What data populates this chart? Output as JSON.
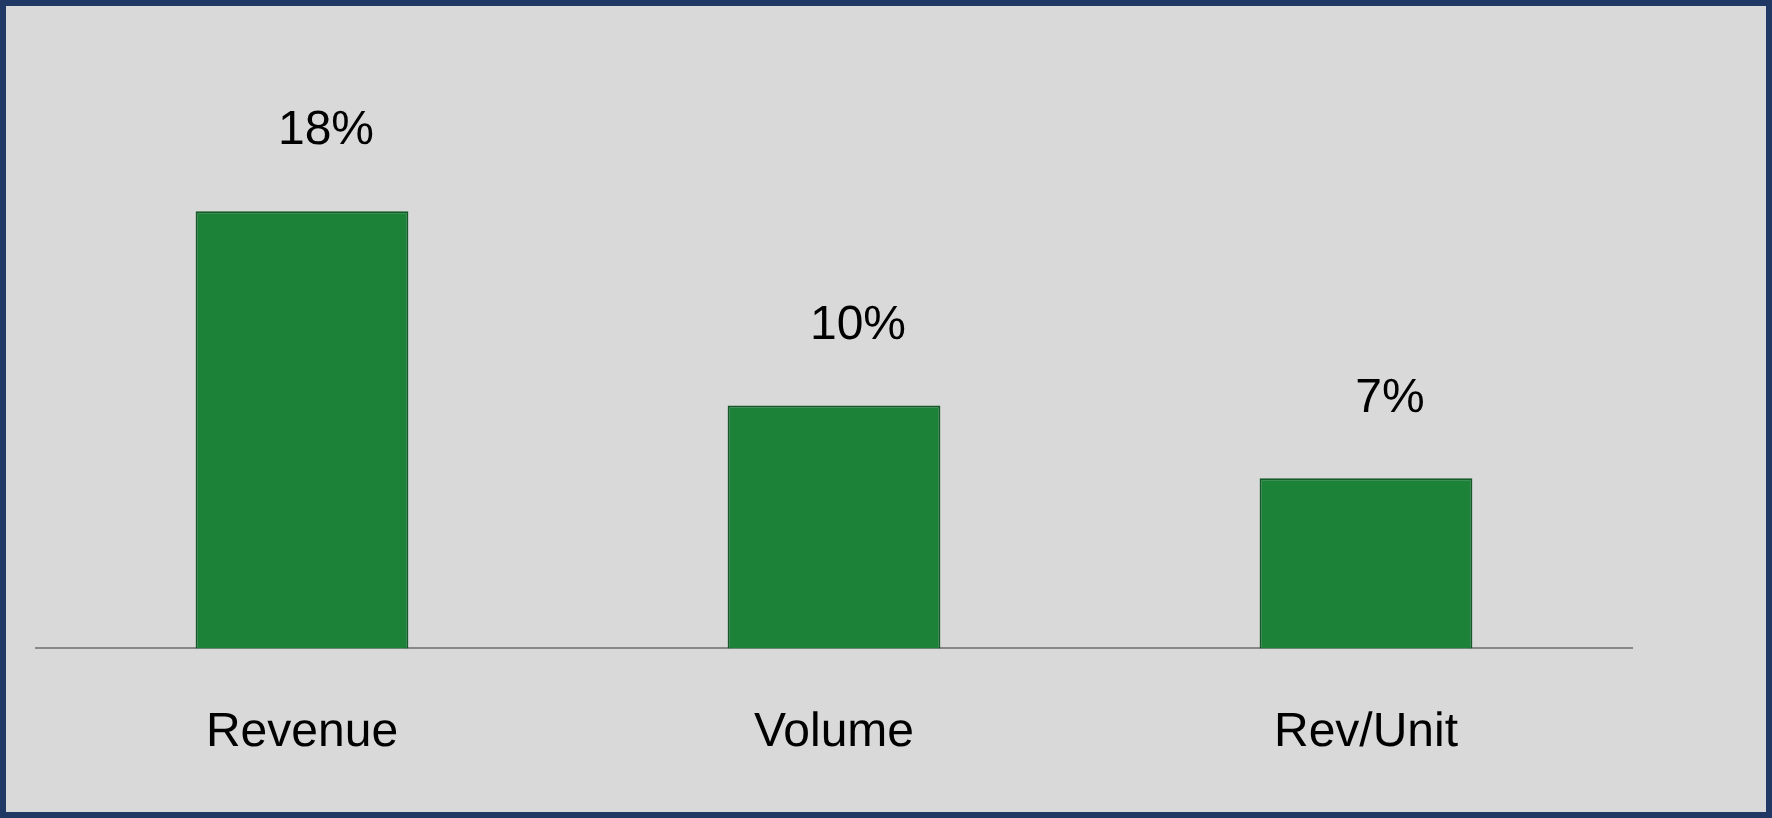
{
  "chart_data": {
    "type": "bar",
    "categories": [
      "Revenue",
      "Volume",
      "Rev/Unit"
    ],
    "values": [
      18,
      10,
      7
    ],
    "color": "#1b8238",
    "value_labels": [
      "18%",
      "10%",
      "7%"
    ],
    "legend": false,
    "grid": false
  }
}
